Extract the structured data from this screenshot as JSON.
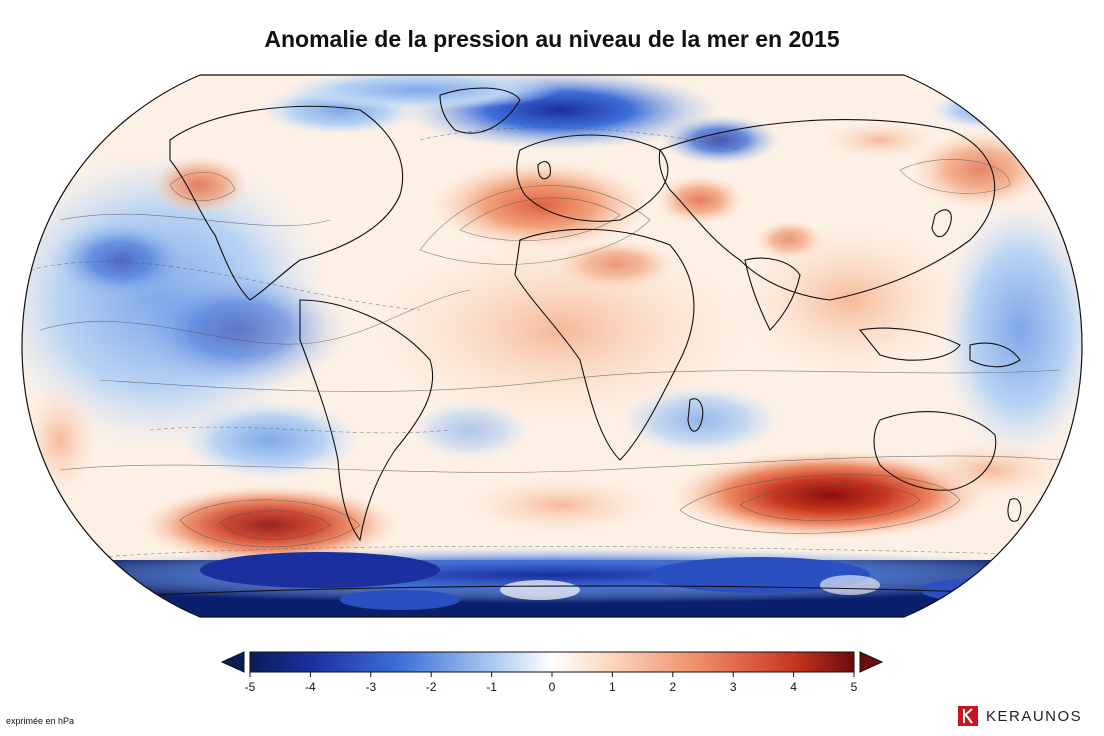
{
  "title": "Anomalie de la pression au niveau de la mer en 2015",
  "colorbar": {
    "ticks": [
      "-5",
      "-4",
      "-3",
      "-2",
      "-1",
      "0",
      "1",
      "2",
      "3",
      "4",
      "5"
    ],
    "range": [
      -5,
      5
    ],
    "colors": {
      "low_end": "#081d58",
      "deep_blue": "#1b2f9e",
      "blue": "#3f6fd9",
      "light_blue": "#a8c9f0",
      "neutral": "#ffffff",
      "light_orange": "#fbd6bd",
      "orange": "#ee8a64",
      "red": "#c8361f",
      "high_end": "#6b0b0b"
    }
  },
  "unit_note": "exprimée en hPa",
  "brand": {
    "name": "KERAUNOS",
    "logo_icon": "keraunos-logo-icon"
  },
  "map": {
    "projection": "Robinson",
    "ocean_neutral": "#fdf1e6"
  }
}
